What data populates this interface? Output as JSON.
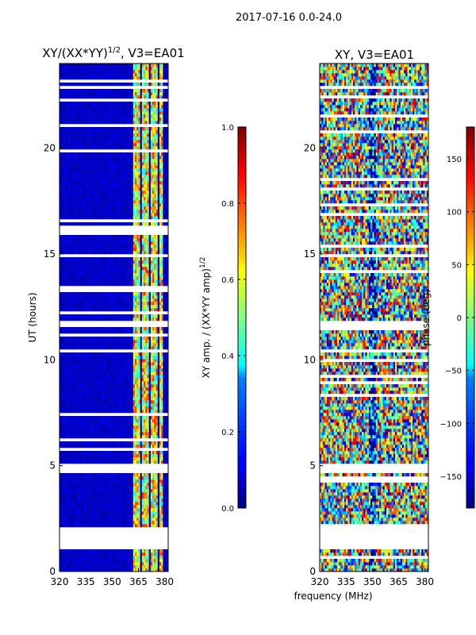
{
  "figure": {
    "suptitle": "2017-07-16 0.0-24.0",
    "shared_xlabel": "frequency (MHz)"
  },
  "chart_data": [
    {
      "type": "heatmap",
      "title": "XY/(XX*YY)^{1/2}, V3=EA01",
      "title_main": "XY/(XX*YY)",
      "title_exponent": "1/2",
      "title_suffix": ", V3=EA01",
      "xlabel": "",
      "ylabel": "UT (hours)",
      "xlim": [
        320,
        382
      ],
      "ylim": [
        0,
        24
      ],
      "xticks": [
        320,
        335,
        350,
        365,
        380
      ],
      "yticks": [
        0,
        5,
        10,
        15,
        20
      ],
      "colorbar": {
        "label_main": "XY amp. / (XX*YY amp)",
        "label_exponent": "1/2",
        "range": [
          0.0,
          1.0
        ],
        "ticks": [
          "0.0",
          "0.2",
          "0.4",
          "0.6",
          "0.8",
          "1.0"
        ]
      },
      "data_gaps_hours": [
        [
          1.0,
          2.1
        ],
        [
          4.6,
          5.1
        ],
        [
          11.5,
          11.8
        ]
      ],
      "bright_channels_mhz": [
        363,
        365,
        368,
        370,
        373,
        375,
        378
      ]
    },
    {
      "type": "heatmap",
      "title": "XY, V3=EA01",
      "xlabel": "frequency (MHz)",
      "ylabel": "",
      "xlim": [
        320,
        382
      ],
      "ylim": [
        0,
        24
      ],
      "xticks": [
        320,
        335,
        350,
        365,
        380
      ],
      "yticks": [
        0,
        5,
        10,
        15,
        20
      ],
      "colorbar": {
        "label": "phase (deg)",
        "range": [
          -180,
          180
        ],
        "ticks": [
          "−150",
          "−100",
          "−50",
          "0",
          "50",
          "100",
          "150"
        ]
      },
      "data_gaps_hours": [
        [
          1.0,
          2.1
        ],
        [
          4.6,
          5.1
        ],
        [
          11.5,
          11.8
        ]
      ]
    }
  ],
  "colors": {
    "jet_low": "#00007f",
    "jet_mid": "#7fff7f",
    "jet_high": "#7f0000",
    "frame": "#000000",
    "gap": "#ffffff"
  }
}
